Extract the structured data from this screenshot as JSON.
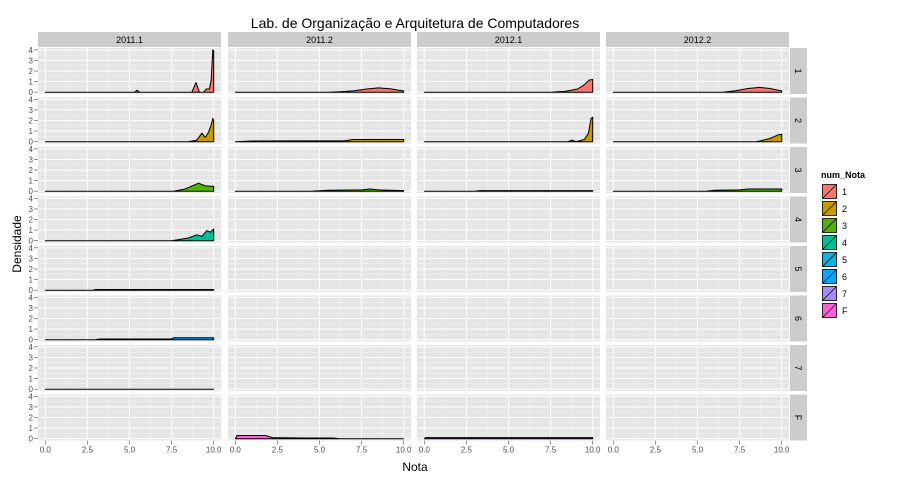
{
  "chart_data": {
    "type": "area",
    "title": "Lab. de Organização e Arquitetura de Computadores",
    "xlabel": "Nota",
    "ylabel": "Densidade",
    "xlim": [
      0,
      10
    ],
    "ylim": [
      0,
      4
    ],
    "x_ticks": [
      "0.0",
      "2.5",
      "5.0",
      "7.5",
      "10.0"
    ],
    "y_ticks": [
      "0",
      "1",
      "2",
      "3",
      "4"
    ],
    "grid": true,
    "legend": {
      "title": "num_Nota",
      "placement": "right",
      "entries": [
        {
          "label": "1",
          "color": "#F8766D"
        },
        {
          "label": "2",
          "color": "#C49A00"
        },
        {
          "label": "3",
          "color": "#53B400"
        },
        {
          "label": "4",
          "color": "#00C094"
        },
        {
          "label": "5",
          "color": "#00B6EB"
        },
        {
          "label": "6",
          "color": "#00A6FF"
        },
        {
          "label": "7",
          "color": "#A58AFF"
        },
        {
          "label": "F",
          "color": "#FB61D7"
        }
      ]
    },
    "columns": [
      "2011.1",
      "2011.2",
      "2012.1",
      "2012.2"
    ],
    "rows": [
      "1",
      "2",
      "3",
      "4",
      "5",
      "6",
      "7",
      "F"
    ],
    "panels": [
      {
        "row": "1",
        "col": "2011.1",
        "points": [
          [
            0,
            0
          ],
          [
            5.3,
            0
          ],
          [
            5.45,
            0.18
          ],
          [
            5.6,
            0
          ],
          [
            8.7,
            0
          ],
          [
            8.95,
            0.9
          ],
          [
            9.15,
            0
          ],
          [
            9.4,
            0
          ],
          [
            9.55,
            0.3
          ],
          [
            9.75,
            0.3
          ],
          [
            9.85,
            1.2
          ],
          [
            9.95,
            4
          ],
          [
            10,
            3.9
          ]
        ]
      },
      {
        "row": "1",
        "col": "2011.2",
        "points": [
          [
            0,
            0
          ],
          [
            5.5,
            0
          ],
          [
            6.2,
            0.03
          ],
          [
            7,
            0.12
          ],
          [
            7.8,
            0.3
          ],
          [
            8.5,
            0.4
          ],
          [
            9.2,
            0.32
          ],
          [
            9.7,
            0.18
          ],
          [
            10,
            0.12
          ]
        ]
      },
      {
        "row": "1",
        "col": "2012.1",
        "points": [
          [
            0,
            0
          ],
          [
            7.5,
            0
          ],
          [
            8.4,
            0.08
          ],
          [
            9.1,
            0.3
          ],
          [
            9.5,
            0.7
          ],
          [
            9.8,
            1.15
          ],
          [
            10,
            1.2
          ]
        ]
      },
      {
        "row": "1",
        "col": "2012.2",
        "points": [
          [
            0,
            0
          ],
          [
            6.5,
            0
          ],
          [
            7.2,
            0.12
          ],
          [
            8,
            0.35
          ],
          [
            8.7,
            0.45
          ],
          [
            9.3,
            0.35
          ],
          [
            10,
            0.12
          ]
        ]
      },
      {
        "row": "2",
        "col": "2011.1",
        "points": [
          [
            0,
            0
          ],
          [
            8.5,
            0
          ],
          [
            9,
            0.15
          ],
          [
            9.3,
            0.8
          ],
          [
            9.5,
            0.4
          ],
          [
            9.7,
            0.9
          ],
          [
            9.85,
            1.6
          ],
          [
            9.95,
            2.2
          ],
          [
            10,
            2.0
          ]
        ]
      },
      {
        "row": "2",
        "col": "2011.2",
        "points": [
          [
            0,
            0
          ],
          [
            1,
            0.06
          ],
          [
            6.5,
            0.08
          ],
          [
            7,
            0.2
          ],
          [
            10,
            0.2
          ]
        ]
      },
      {
        "row": "2",
        "col": "2012.1",
        "points": [
          [
            0,
            0
          ],
          [
            8.5,
            0
          ],
          [
            8.8,
            0.15
          ],
          [
            9,
            0
          ],
          [
            9.5,
            0.2
          ],
          [
            9.75,
            0.8
          ],
          [
            9.9,
            2.2
          ],
          [
            10,
            2.3
          ]
        ]
      },
      {
        "row": "2",
        "col": "2012.2",
        "points": [
          [
            0,
            0
          ],
          [
            8.5,
            0
          ],
          [
            9.3,
            0.3
          ],
          [
            9.8,
            0.65
          ],
          [
            10,
            0.7
          ]
        ]
      },
      {
        "row": "3",
        "col": "2011.1",
        "points": [
          [
            0,
            0
          ],
          [
            7.6,
            0
          ],
          [
            8.3,
            0.2
          ],
          [
            8.8,
            0.55
          ],
          [
            9.1,
            0.75
          ],
          [
            9.5,
            0.5
          ],
          [
            10,
            0.45
          ]
        ]
      },
      {
        "row": "3",
        "col": "2011.2",
        "points": [
          [
            0,
            0
          ],
          [
            4.5,
            0
          ],
          [
            5.5,
            0.08
          ],
          [
            7.5,
            0.12
          ],
          [
            8,
            0.2
          ],
          [
            8.5,
            0.12
          ],
          [
            10,
            0.05
          ]
        ]
      },
      {
        "row": "3",
        "col": "2012.1",
        "points": [
          [
            0,
            0
          ],
          [
            3,
            0
          ],
          [
            3.3,
            0.05
          ],
          [
            10,
            0.05
          ]
        ]
      },
      {
        "row": "3",
        "col": "2012.2",
        "points": [
          [
            0,
            0
          ],
          [
            5.5,
            0
          ],
          [
            6,
            0.08
          ],
          [
            7.5,
            0.12
          ],
          [
            8,
            0.2
          ],
          [
            10,
            0.2
          ]
        ]
      },
      {
        "row": "4",
        "col": "2011.1",
        "points": [
          [
            0,
            0
          ],
          [
            7.5,
            0
          ],
          [
            8,
            0.12
          ],
          [
            8.5,
            0.25
          ],
          [
            9,
            0.55
          ],
          [
            9.3,
            0.4
          ],
          [
            9.6,
            0.95
          ],
          [
            9.8,
            0.8
          ],
          [
            10,
            1.1
          ]
        ]
      },
      {
        "row": "5",
        "col": "2011.1",
        "points": [
          [
            0,
            0
          ],
          [
            2.8,
            0
          ],
          [
            3,
            0.06
          ],
          [
            10,
            0.06
          ]
        ]
      },
      {
        "row": "6",
        "col": "2011.1",
        "points": [
          [
            0,
            0
          ],
          [
            3,
            0
          ],
          [
            3.2,
            0.06
          ],
          [
            7.5,
            0.06
          ],
          [
            7.6,
            0.18
          ],
          [
            10,
            0.18
          ]
        ]
      },
      {
        "row": "7",
        "col": "2011.1",
        "points": [
          [
            0,
            0
          ],
          [
            10,
            0
          ]
        ]
      },
      {
        "row": "F",
        "col": "2011.2",
        "points": [
          [
            0,
            0
          ],
          [
            0.1,
            0.3
          ],
          [
            1.8,
            0.3
          ],
          [
            2.2,
            0.1
          ],
          [
            4,
            0.06
          ],
          [
            5.8,
            0.06
          ],
          [
            6.2,
            0
          ],
          [
            10,
            0
          ]
        ]
      },
      {
        "row": "F",
        "col": "2012.1",
        "points": [
          [
            0,
            0
          ],
          [
            0.1,
            0.1
          ],
          [
            10,
            0.1
          ]
        ]
      }
    ]
  }
}
